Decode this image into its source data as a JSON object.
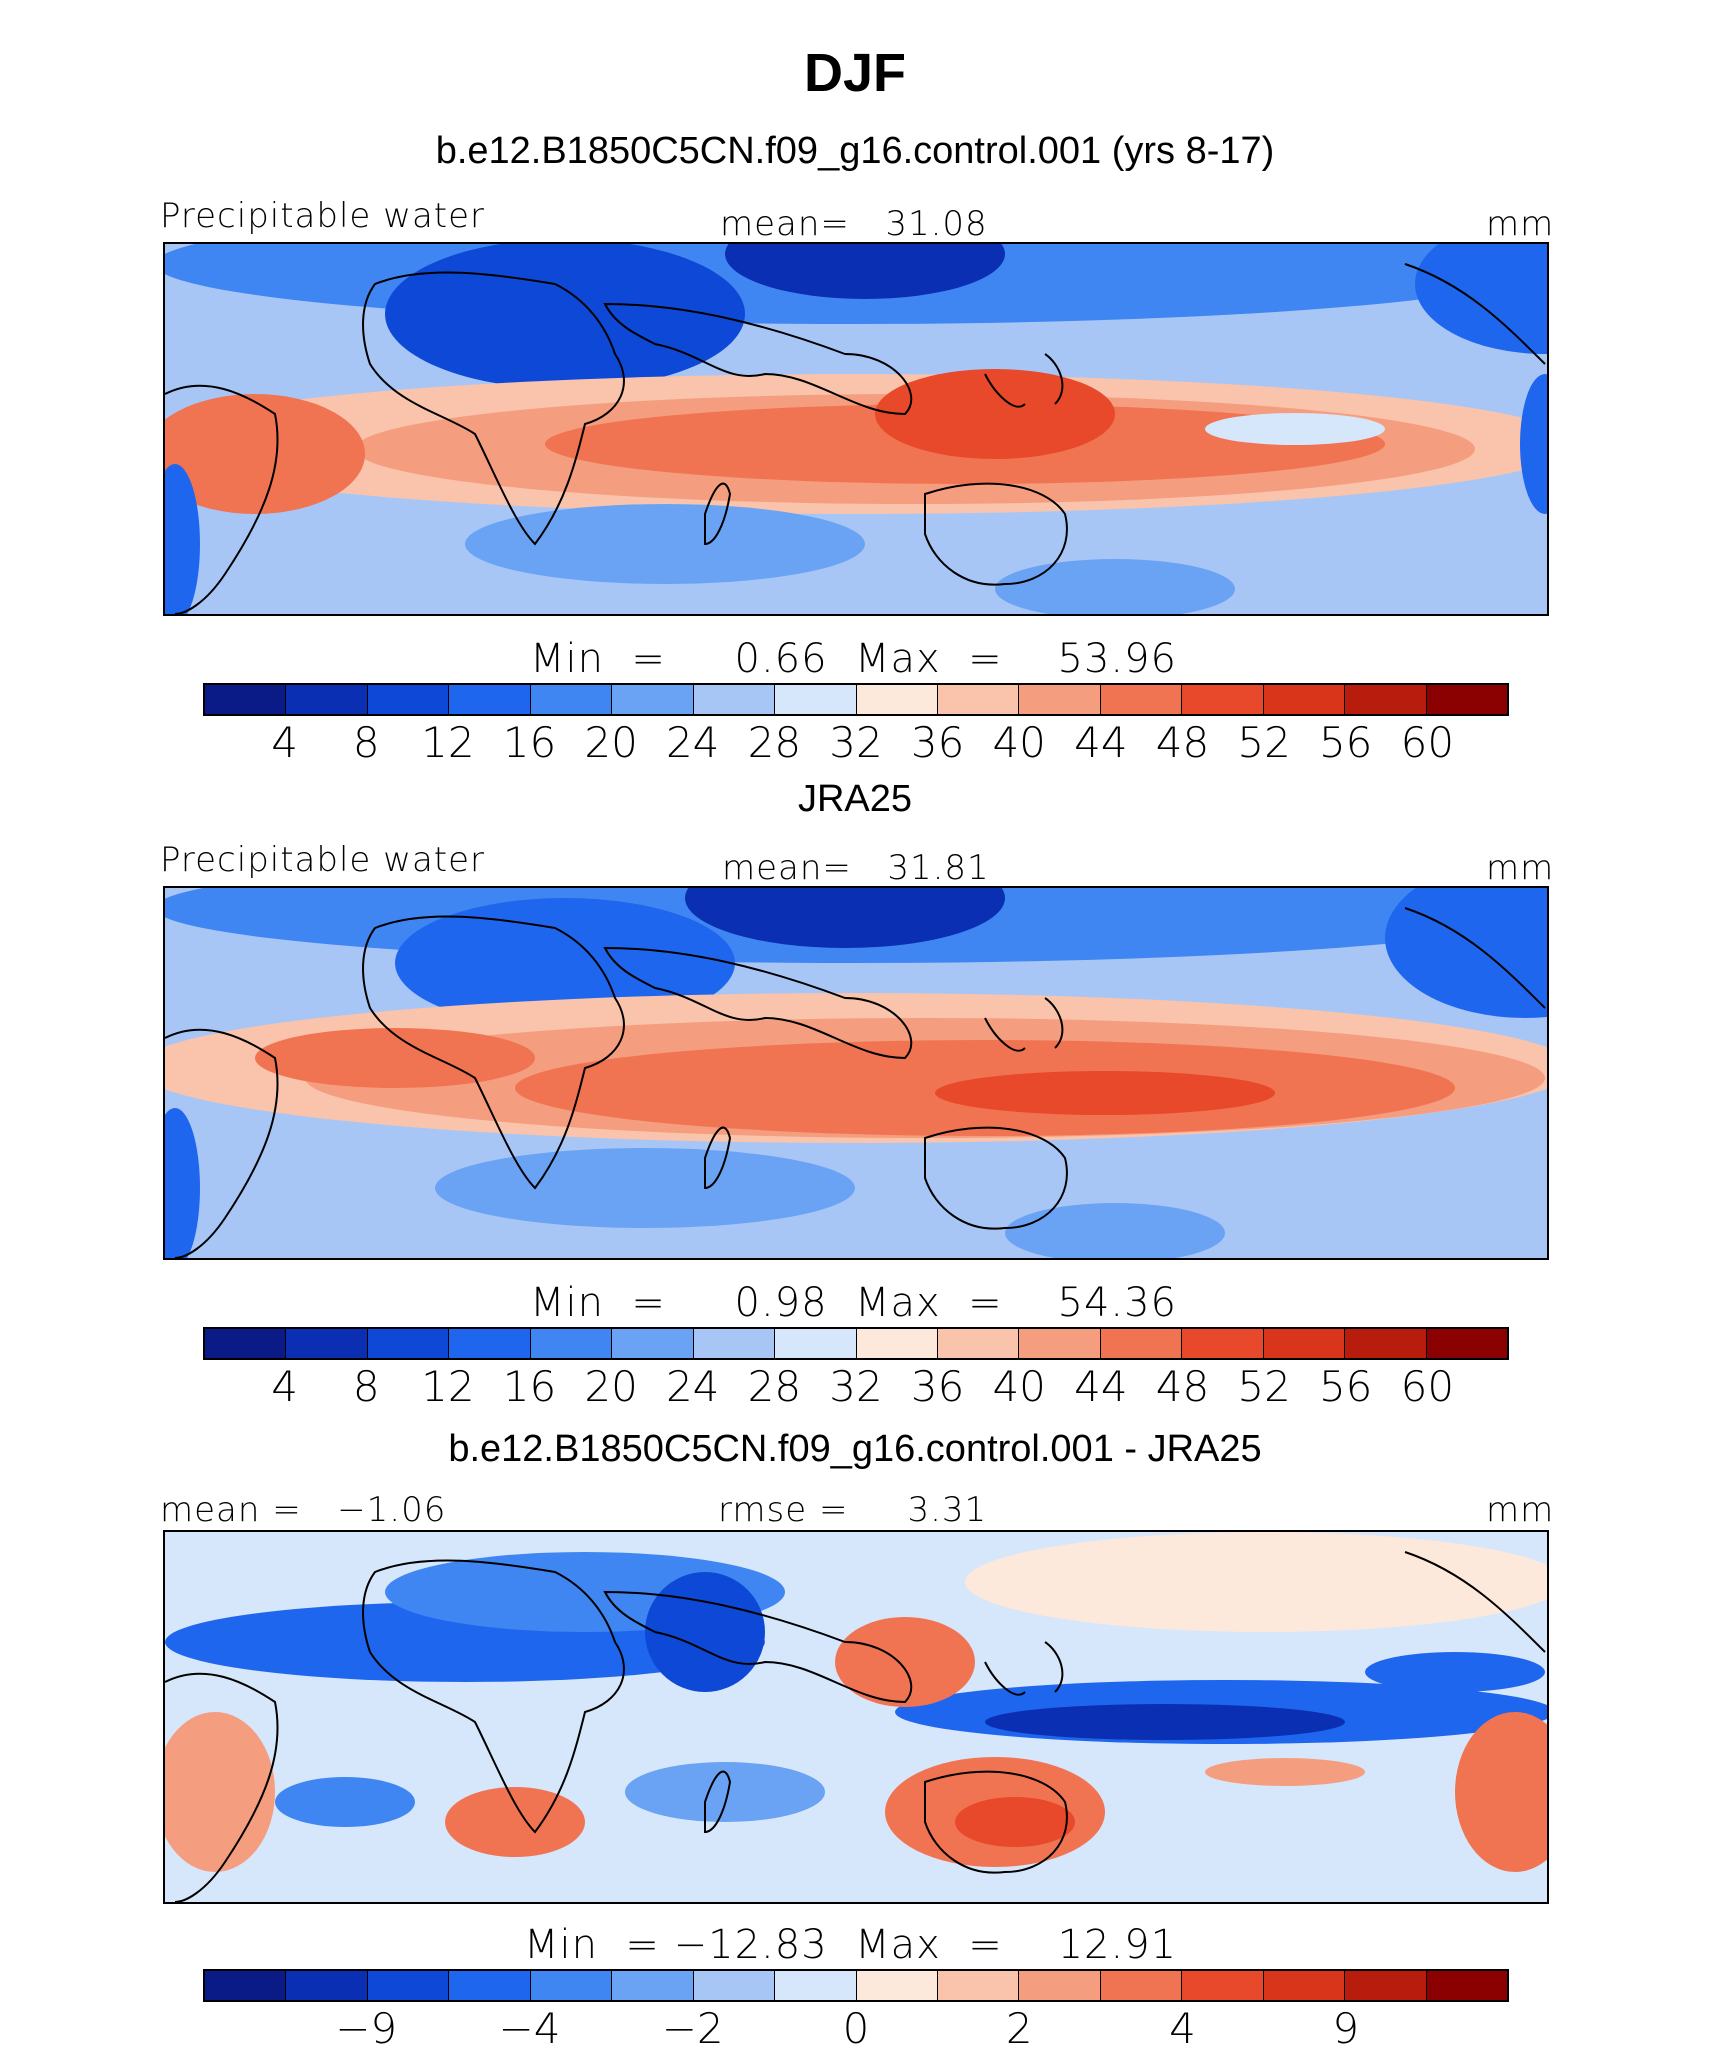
{
  "title": "DJF",
  "colors": [
    "#0a1a86",
    "#0b2fb3",
    "#0d49d6",
    "#1f66ef",
    "#3f86f2",
    "#6ba3f4",
    "#a7c6f6",
    "#d6e6fb",
    "#fde8dc",
    "#f9c4ab",
    "#f59d7f",
    "#f17452",
    "#e7492a",
    "#d9351a",
    "#b71c0c",
    "#8b0000"
  ],
  "panels": [
    {
      "title": "b.e12.B1850C5CN.f09_g16.control.001 (yrs 8-17)",
      "left_label": "Precipitable water",
      "center_label": "mean=   31.08",
      "right_label": "mm",
      "minmax": "Min  =     0.66  Max  =    53.96",
      "ticks": [
        "4",
        "8",
        "12",
        "16",
        "20",
        "24",
        "28",
        "32",
        "36",
        "40",
        "44",
        "48",
        "52",
        "56",
        "60"
      ]
    },
    {
      "title": "JRA25",
      "left_label": "Precipitable water",
      "center_label": "mean=   31.81",
      "right_label": "mm",
      "minmax": "Min  =     0.98  Max  =    54.36",
      "ticks": [
        "4",
        "8",
        "12",
        "16",
        "20",
        "24",
        "28",
        "32",
        "36",
        "40",
        "44",
        "48",
        "52",
        "56",
        "60"
      ]
    },
    {
      "title": "b.e12.B1850C5CN.f09_g16.control.001 - JRA25",
      "left_label": "mean =   −1.06",
      "center_label": "rmse =     3.31",
      "right_label": "mm",
      "minmax": "Min  = −12.83  Max  =    12.91",
      "ticks": [
        "−9",
        "−4",
        "−2",
        "0",
        "2",
        "4",
        "9"
      ]
    }
  ]
}
